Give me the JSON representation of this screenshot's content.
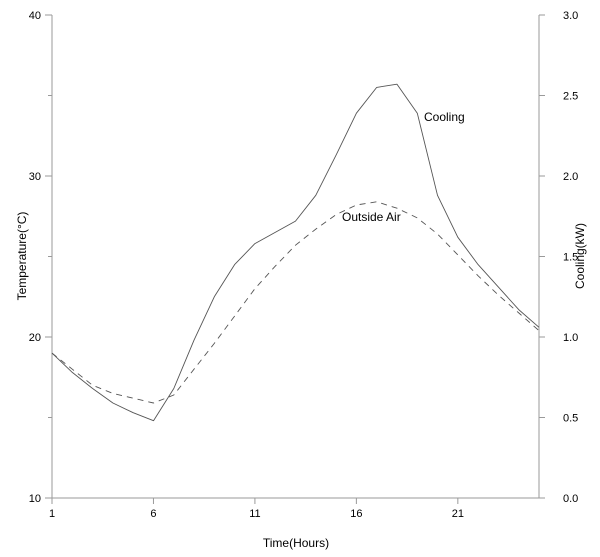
{
  "chart_data": {
    "type": "line",
    "title": "",
    "xlabel": "Time(Hours)",
    "ylabel_left": "Temperature(°C)",
    "ylabel_right": "Cooling(kW)",
    "xlim": [
      1,
      25
    ],
    "ylim_left": [
      10,
      40
    ],
    "ylim_right": [
      0,
      3
    ],
    "x_ticks": [
      1,
      6,
      11,
      16,
      21
    ],
    "y_ticks_left": [
      10,
      20,
      30,
      40
    ],
    "y_ticks_left_minor": [
      15,
      25,
      35
    ],
    "y_ticks_right": [
      "0.0",
      "0.5",
      "1.0",
      "1.5",
      "2.0",
      "2.5",
      "3.0"
    ],
    "grid": false,
    "legend": "none",
    "series": [
      {
        "name": "Cooling",
        "axis": "right",
        "style": "solid",
        "color": "#555555",
        "x": [
          1,
          2,
          3,
          4,
          5,
          6,
          7,
          8,
          9,
          10,
          11,
          12,
          13,
          14,
          15,
          16,
          17,
          18,
          19,
          20,
          21,
          22,
          23,
          24,
          25
        ],
        "values": [
          0.9,
          0.78,
          0.68,
          0.59,
          0.53,
          0.48,
          0.68,
          0.98,
          1.25,
          1.45,
          1.58,
          1.65,
          1.72,
          1.88,
          2.13,
          2.39,
          2.55,
          2.57,
          2.39,
          1.88,
          1.62,
          1.45,
          1.31,
          1.17,
          1.06
        ]
      },
      {
        "name": "Outside Air",
        "axis": "left",
        "style": "dashed",
        "color": "#555555",
        "x": [
          1,
          2,
          3,
          4,
          5,
          6,
          7,
          8,
          9,
          10,
          11,
          12,
          13,
          14,
          15,
          16,
          17,
          18,
          19,
          20,
          21,
          22,
          23,
          24,
          25
        ],
        "values": [
          19.0,
          18.0,
          17.0,
          16.5,
          16.2,
          15.9,
          16.4,
          18.0,
          19.6,
          21.3,
          23.0,
          24.4,
          25.7,
          26.7,
          27.6,
          28.2,
          28.4,
          28.0,
          27.4,
          26.4,
          25.1,
          23.8,
          22.6,
          21.5,
          20.4
        ]
      }
    ],
    "annotations": [
      "Cooling",
      "Outside Air"
    ]
  }
}
